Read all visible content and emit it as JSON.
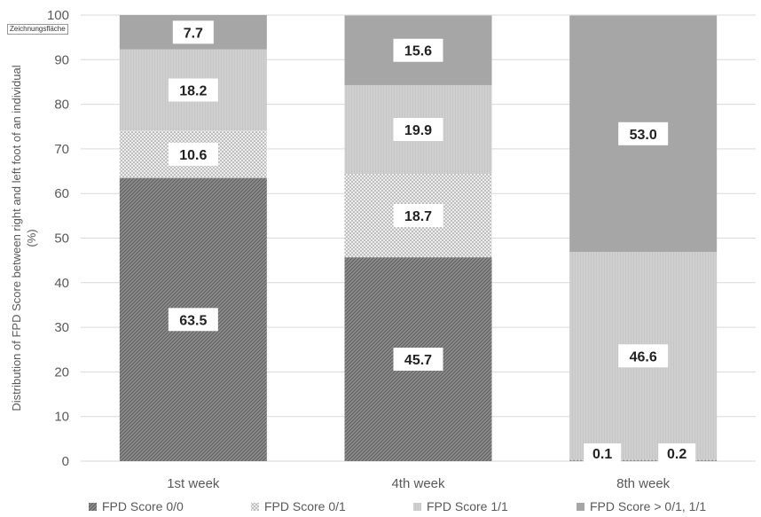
{
  "plot_area_tag": "Zeichnungsfläche",
  "colors": {
    "score_00": "#8c8c8c",
    "score_01": "#c4c4c4",
    "score_11": "#c9c9c9",
    "score_gt": "#a6a6a6",
    "axis_text": "#595959",
    "grid": "#d9d9d9"
  },
  "chart_data": {
    "type": "bar",
    "stacked": true,
    "categories": [
      "1st week",
      "4th week",
      "8th week"
    ],
    "ylabel": "Distribution of FPD Score between right and left foot of an individual (%)",
    "ylim": [
      0,
      100
    ],
    "yticks": [
      0,
      10,
      20,
      30,
      40,
      50,
      60,
      70,
      80,
      90,
      100
    ],
    "grid": true,
    "legend_position": "bottom",
    "series": [
      {
        "name": "FPD Score 0/0",
        "values": [
          63.5,
          45.7,
          0.1
        ],
        "labels": [
          "63.5",
          "45.7",
          "0.1"
        ]
      },
      {
        "name": "FPD Score 0/1",
        "values": [
          10.6,
          18.7,
          0.2
        ],
        "labels": [
          "10.6",
          "18.7",
          "0.2"
        ]
      },
      {
        "name": "FPD Score 1/1",
        "values": [
          18.2,
          19.9,
          46.6
        ],
        "labels": [
          "18.2",
          "19.9",
          "46.6"
        ]
      },
      {
        "name": "FPD Score > 0/1, 1/1",
        "values": [
          7.7,
          15.6,
          53.0
        ],
        "labels": [
          "7.7",
          "15.6",
          "53.0"
        ]
      }
    ]
  }
}
